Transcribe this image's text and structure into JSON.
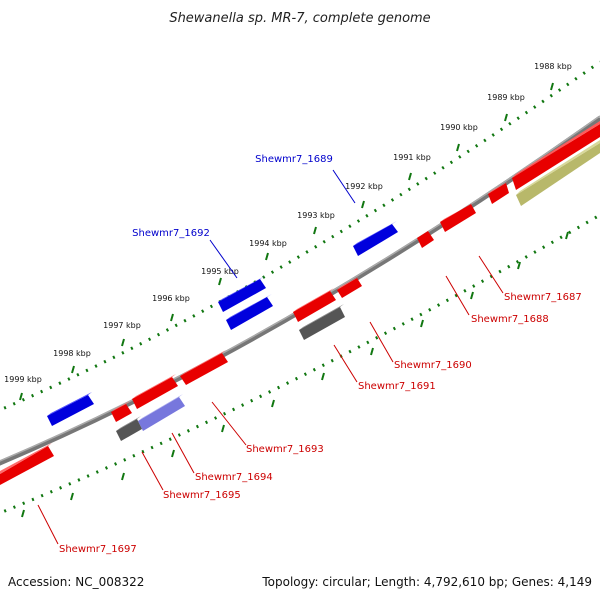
{
  "title": "Shewanella sp. MR-7, complete genome",
  "accession": "Accession: NC_008322",
  "summary": "Topology: circular; Length: 4,792,610 bp; Genes: 4,149",
  "colors": {
    "forward_gene": "#ee0000",
    "reverse_gene": "#0000dd",
    "dark_gene": "#555555",
    "purple_gene": "#7777dd",
    "olive_gene": "#bbbb66",
    "label_forward": "#cc0000",
    "label_reverse": "#0000cc",
    "backbone": "#888888",
    "ticks": "#117711"
  },
  "scale_labels": [
    "1988 kbp",
    "1989 kbp",
    "1990 kbp",
    "1991 kbp",
    "1992 kbp",
    "1993 kbp",
    "1994 kbp",
    "1995 kbp",
    "1996 kbp",
    "1997 kbp",
    "1998 kbp",
    "1999 kbp"
  ],
  "genes_reverse": [
    {
      "label": "Shewmr7_1689"
    },
    {
      "label": "Shewmr7_1692"
    }
  ],
  "genes_forward": [
    {
      "label": "Shewmr7_1687"
    },
    {
      "label": "Shewmr7_1688"
    },
    {
      "label": "Shewmr7_1690"
    },
    {
      "label": "Shewmr7_1691"
    },
    {
      "label": "Shewmr7_1693"
    },
    {
      "label": "Shewmr7_1694"
    },
    {
      "label": "Shewmr7_1695"
    },
    {
      "label": "Shewmr7_1697"
    }
  ]
}
